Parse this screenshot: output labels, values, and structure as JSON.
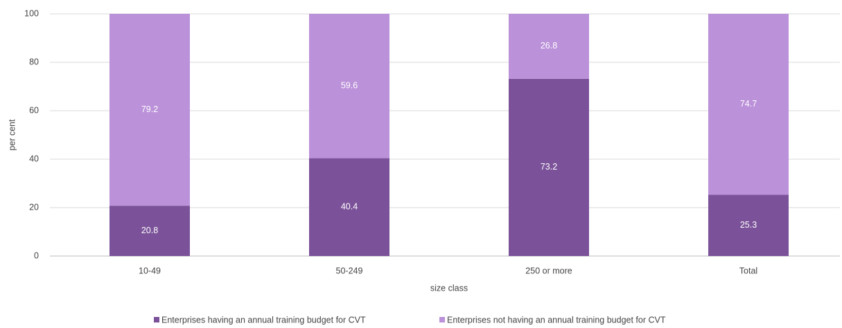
{
  "chart_data": {
    "type": "stacked_bar",
    "categories": [
      "10-49",
      "50-249",
      "250 or more",
      "Total"
    ],
    "series": [
      {
        "name": "Enterprises having an annual training budget for CVT",
        "color": "#7b5299",
        "values": [
          20.8,
          40.4,
          73.2,
          25.3
        ]
      },
      {
        "name": "Enterprises not having an annual training budget for CVT",
        "color": "#bb91d9",
        "values": [
          79.2,
          59.6,
          26.8,
          74.7
        ]
      }
    ],
    "ylabel": "per cent",
    "xlabel": "size class",
    "ylim": [
      0,
      100
    ],
    "yticks": [
      0,
      20,
      40,
      60,
      80,
      100
    ],
    "grid": true,
    "legend": "bottom"
  }
}
